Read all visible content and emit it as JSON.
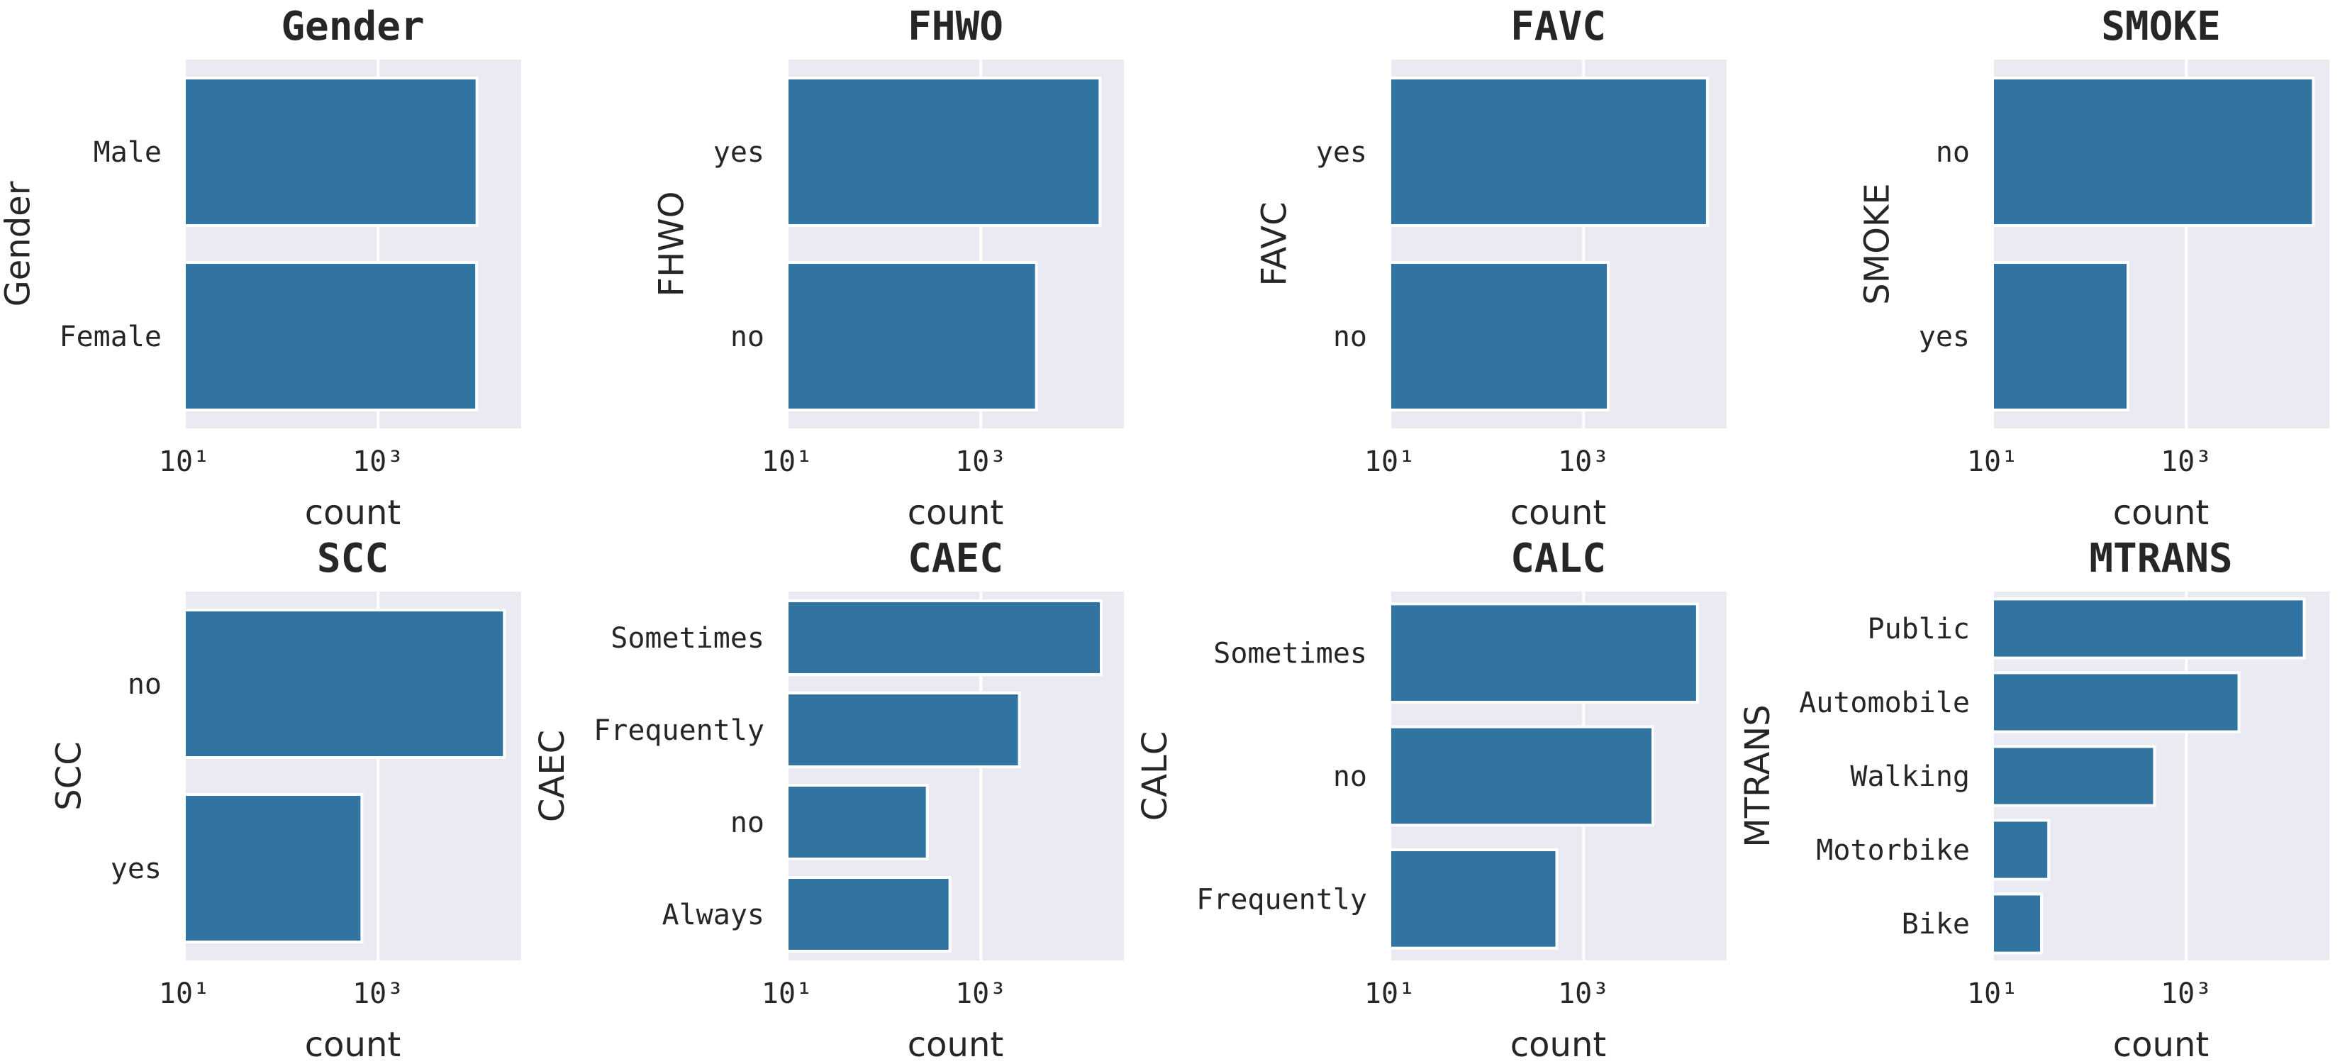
{
  "chart_data": [
    {
      "type": "bar",
      "orientation": "horizontal",
      "title": "Gender",
      "xlabel": "count",
      "ylabel": "Gender",
      "xscale": "log",
      "xlim": [
        10,
        30000
      ],
      "xticks": [
        10,
        1000
      ],
      "categories": [
        "Male",
        "Female"
      ],
      "values": [
        10500,
        10400
      ]
    },
    {
      "type": "bar",
      "orientation": "horizontal",
      "title": "FHWO",
      "xlabel": "count",
      "ylabel": "FHWO",
      "xscale": "log",
      "xlim": [
        10,
        30000
      ],
      "xticks": [
        10,
        1000
      ],
      "categories": [
        "yes",
        "no"
      ],
      "values": [
        17000,
        3750
      ]
    },
    {
      "type": "bar",
      "orientation": "horizontal",
      "title": "FAVC",
      "xlabel": "count",
      "ylabel": "FAVC",
      "xscale": "log",
      "xlim": [
        10,
        30000
      ],
      "xticks": [
        10,
        1000
      ],
      "categories": [
        "yes",
        "no"
      ],
      "values": [
        19000,
        1800
      ]
    },
    {
      "type": "bar",
      "orientation": "horizontal",
      "title": "SMOKE",
      "xlabel": "count",
      "ylabel": "SMOKE",
      "xscale": "log",
      "xlim": [
        10,
        30000
      ],
      "xticks": [
        10,
        1000
      ],
      "categories": [
        "no",
        "yes"
      ],
      "values": [
        20500,
        250
      ]
    },
    {
      "type": "bar",
      "orientation": "horizontal",
      "title": "SCC",
      "xlabel": "count",
      "ylabel": "SCC",
      "xscale": "log",
      "xlim": [
        10,
        30000
      ],
      "xticks": [
        10,
        1000
      ],
      "categories": [
        "no",
        "yes"
      ],
      "values": [
        20100,
        680
      ]
    },
    {
      "type": "bar",
      "orientation": "horizontal",
      "title": "CAEC",
      "xlabel": "count",
      "ylabel": "CAEC",
      "xscale": "log",
      "xlim": [
        10,
        30000
      ],
      "xticks": [
        10,
        1000
      ],
      "categories": [
        "Sometimes",
        "Frequently",
        "no",
        "Always"
      ],
      "values": [
        17500,
        2500,
        280,
        480
      ]
    },
    {
      "type": "bar",
      "orientation": "horizontal",
      "title": "CALC",
      "xlabel": "count",
      "ylabel": "CALC",
      "xscale": "log",
      "xlim": [
        10,
        30000
      ],
      "xticks": [
        10,
        1000
      ],
      "categories": [
        "Sometimes",
        "no",
        "Frequently"
      ],
      "values": [
        15000,
        5200,
        530
      ]
    },
    {
      "type": "bar",
      "orientation": "horizontal",
      "title": "MTRANS",
      "xlabel": "count",
      "ylabel": "MTRANS",
      "xscale": "log",
      "xlim": [
        10,
        30000
      ],
      "xticks": [
        10,
        1000
      ],
      "categories": [
        "Public",
        "Automobile",
        "Walking",
        "Motorbike",
        "Bike"
      ],
      "values": [
        16500,
        3500,
        470,
        38,
        32
      ]
    }
  ],
  "colors": {
    "bar": "#3274a1",
    "background": "#eaeaf2",
    "grid": "#ffffff",
    "text": "#262626"
  }
}
